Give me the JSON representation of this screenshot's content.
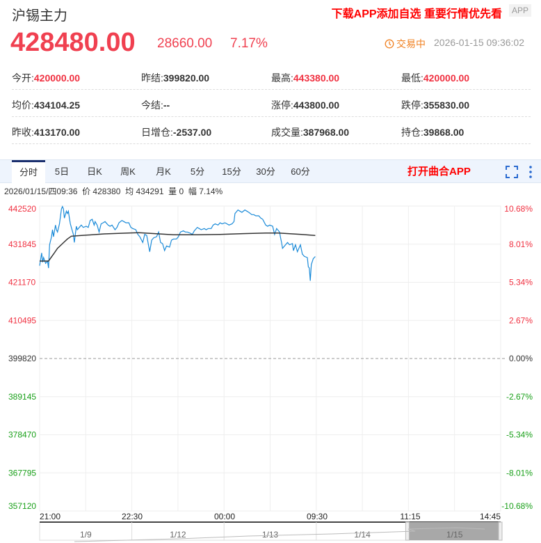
{
  "header": {
    "title": "沪锡主力",
    "promo": "下载APP添加自选 重要行情优先看",
    "app_badge": "APP"
  },
  "quote": {
    "price": "428480.00",
    "change": "28660.00",
    "change_pct": "7.17%",
    "status": "交易中",
    "time": "2026-01-15 09:36:02"
  },
  "stats": [
    [
      {
        "label": "今开:",
        "value": "420000.00",
        "color": "red"
      },
      {
        "label": "昨结:",
        "value": "399820.00"
      },
      {
        "label": "最高:",
        "value": "443380.00",
        "color": "red"
      },
      {
        "label": "最低:",
        "value": "420000.00",
        "color": "red"
      }
    ],
    [
      {
        "label": "均价:",
        "value": "434104.25"
      },
      {
        "label": "今结:",
        "value": "--"
      },
      {
        "label": "涨停:",
        "value": "443800.00"
      },
      {
        "label": "跌停:",
        "value": "355830.00"
      }
    ],
    [
      {
        "label": "昨收:",
        "value": "413170.00"
      },
      {
        "label": "日增仓:",
        "value": "-2537.00"
      },
      {
        "label": "成交量:",
        "value": "387968.00"
      },
      {
        "label": "持仓:",
        "value": "39868.00"
      }
    ]
  ],
  "tabs": [
    "分时",
    "5日",
    "日K",
    "周K",
    "月K",
    "5分",
    "15分",
    "30分",
    "60分"
  ],
  "active_tab": "分时",
  "open_app": "打开曲合APP",
  "crosshair_info": "2026/01/15/四09:36  价 428380  均 434291  量 0  幅 7.14%",
  "colors": {
    "up": "#f03040",
    "down": "#1aa01a",
    "price_line": "#1a8ad8",
    "avg_line": "#333333"
  },
  "chart_data": {
    "type": "line",
    "base_price": 399820,
    "ylim": [
      357120,
      442520
    ],
    "y_ticks": [
      "442520",
      "431845",
      "421170",
      "410495",
      "399820",
      "389145",
      "378470",
      "367795",
      "357120"
    ],
    "y_ticks_pct": [
      "10.68%",
      "8.01%",
      "5.34%",
      "2.67%",
      "0.00%",
      "-2.67%",
      "-5.34%",
      "-8.01%",
      "-10.68%"
    ],
    "x_ticks": [
      "21:00",
      "22:30",
      "00:00",
      "09:30",
      "11:15",
      "14:45"
    ],
    "session_minutes": 465,
    "grid": true,
    "series": [
      {
        "key": "price",
        "points": [
          [
            0,
            425810
          ],
          [
            2,
            429390
          ],
          [
            3,
            426790
          ],
          [
            4,
            428090
          ],
          [
            6,
            426470
          ],
          [
            8,
            427120
          ],
          [
            9,
            425140
          ],
          [
            10,
            431670
          ],
          [
            12,
            433940
          ],
          [
            13,
            435890
          ],
          [
            14,
            433940
          ],
          [
            16,
            437190
          ],
          [
            17,
            435890
          ],
          [
            18,
            435240
          ],
          [
            20,
            437520
          ],
          [
            22,
            441740
          ],
          [
            23,
            442390
          ],
          [
            24,
            441740
          ],
          [
            25,
            439140
          ],
          [
            27,
            441090
          ],
          [
            28,
            440440
          ],
          [
            29,
            441090
          ],
          [
            30,
            439140
          ],
          [
            31,
            437520
          ],
          [
            32,
            436540
          ],
          [
            34,
            434590
          ],
          [
            35,
            432320
          ],
          [
            36,
            434590
          ],
          [
            37,
            436870
          ],
          [
            38,
            435890
          ],
          [
            40,
            436540
          ],
          [
            42,
            437190
          ],
          [
            44,
            436540
          ],
          [
            47,
            436870
          ],
          [
            49,
            436540
          ],
          [
            51,
            438490
          ],
          [
            53,
            438820
          ],
          [
            55,
            437190
          ],
          [
            56,
            438170
          ],
          [
            58,
            437190
          ],
          [
            60,
            435240
          ],
          [
            62,
            437520
          ],
          [
            64,
            437840
          ],
          [
            66,
            438170
          ],
          [
            69,
            437190
          ],
          [
            71,
            436870
          ],
          [
            73,
            437190
          ],
          [
            76,
            435890
          ],
          [
            78,
            436540
          ],
          [
            80,
            437840
          ],
          [
            83,
            438490
          ],
          [
            85,
            438170
          ],
          [
            87,
            437840
          ],
          [
            90,
            437840
          ],
          [
            92,
            436540
          ],
          [
            94,
            436220
          ],
          [
            97,
            435890
          ],
          [
            99,
            434590
          ],
          [
            101,
            433940
          ],
          [
            104,
            432320
          ],
          [
            106,
            434590
          ],
          [
            108,
            434270
          ],
          [
            111,
            429720
          ],
          [
            113,
            432970
          ],
          [
            115,
            433620
          ],
          [
            118,
            433940
          ],
          [
            120,
            435240
          ],
          [
            122,
            432320
          ],
          [
            124,
            431990
          ],
          [
            126,
            430040
          ],
          [
            128,
            431340
          ],
          [
            131,
            431020
          ],
          [
            133,
            432970
          ],
          [
            135,
            433290
          ],
          [
            138,
            433290
          ],
          [
            140,
            433940
          ],
          [
            142,
            435240
          ],
          [
            145,
            435570
          ],
          [
            147,
            435240
          ],
          [
            149,
            435240
          ],
          [
            152,
            434920
          ],
          [
            154,
            434590
          ],
          [
            156,
            435570
          ],
          [
            159,
            436540
          ],
          [
            161,
            436220
          ],
          [
            163,
            435890
          ],
          [
            166,
            436220
          ],
          [
            168,
            435890
          ],
          [
            170,
            436220
          ],
          [
            173,
            436220
          ],
          [
            175,
            437190
          ],
          [
            177,
            437520
          ],
          [
            180,
            437190
          ],
          [
            182,
            437840
          ],
          [
            184,
            437520
          ],
          [
            187,
            437840
          ],
          [
            189,
            437520
          ],
          [
            191,
            437190
          ],
          [
            194,
            437520
          ],
          [
            196,
            438170
          ],
          [
            197,
            440440
          ],
          [
            200,
            441420
          ],
          [
            202,
            441090
          ],
          [
            204,
            440770
          ],
          [
            207,
            441420
          ],
          [
            209,
            441090
          ],
          [
            211,
            440770
          ],
          [
            214,
            440120
          ],
          [
            216,
            440120
          ],
          [
            218,
            439790
          ],
          [
            221,
            439790
          ],
          [
            223,
            439140
          ],
          [
            225,
            438820
          ],
          [
            228,
            437190
          ],
          [
            230,
            436870
          ],
          [
            232,
            437190
          ],
          [
            235,
            436870
          ],
          [
            237,
            434590
          ],
          [
            239,
            436220
          ],
          [
            242,
            435240
          ],
          [
            243,
            433620
          ],
          [
            244,
            432320
          ],
          [
            245,
            430690
          ],
          [
            248,
            431670
          ],
          [
            250,
            432320
          ],
          [
            252,
            431670
          ],
          [
            255,
            431990
          ],
          [
            256,
            430040
          ],
          [
            258,
            431670
          ],
          [
            260,
            429720
          ],
          [
            263,
            431670
          ],
          [
            265,
            429070
          ],
          [
            267,
            428420
          ],
          [
            270,
            428090
          ],
          [
            271,
            425490
          ],
          [
            272,
            425170
          ],
          [
            273,
            421590
          ],
          [
            274,
            426140
          ],
          [
            276,
            427770
          ],
          [
            278,
            428380
          ]
        ]
      },
      {
        "key": "avg",
        "points": [
          [
            0,
            427120
          ],
          [
            9,
            427120
          ],
          [
            14,
            429070
          ],
          [
            18,
            430690
          ],
          [
            23,
            431990
          ],
          [
            28,
            433290
          ],
          [
            32,
            434070
          ],
          [
            42,
            434270
          ],
          [
            65,
            434720
          ],
          [
            89,
            434980
          ],
          [
            100,
            435050
          ],
          [
            112,
            434850
          ],
          [
            135,
            434460
          ],
          [
            159,
            434460
          ],
          [
            182,
            434590
          ],
          [
            205,
            434790
          ],
          [
            229,
            434980
          ],
          [
            241,
            434980
          ],
          [
            264,
            434590
          ],
          [
            278,
            434290
          ]
        ]
      }
    ]
  },
  "navigator": {
    "dates": [
      "1/9",
      "1/12",
      "1/13",
      "1/14",
      "1/15"
    ],
    "selected": "1/15"
  }
}
